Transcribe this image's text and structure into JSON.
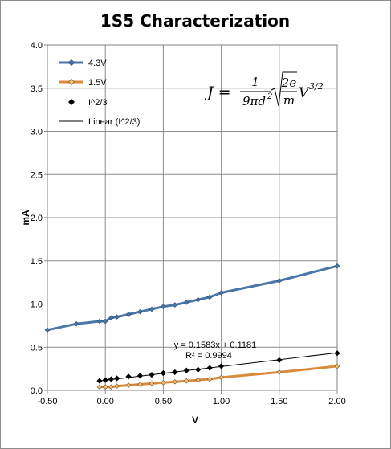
{
  "chart_data": {
    "type": "line",
    "title": "1S5 Characterization",
    "xlabel": "V",
    "ylabel": "mA",
    "xlim": [
      -0.5,
      2.0
    ],
    "ylim": [
      0.0,
      4.0
    ],
    "grid": true,
    "legend_position": "top-left",
    "x_ticks": [
      "-0.50",
      "0.00",
      "0.50",
      "1.00",
      "1.50",
      "2.00"
    ],
    "y_ticks": [
      "0.0",
      "0.5",
      "1.0",
      "1.5",
      "2.0",
      "2.5",
      "3.0",
      "3.5",
      "4.0"
    ],
    "series": [
      {
        "name": "4.3V",
        "style": "line-diamond",
        "color": "#4a76a8",
        "x": [
          -0.5,
          -0.25,
          -0.05,
          0.0,
          0.05,
          0.1,
          0.2,
          0.3,
          0.4,
          0.5,
          0.6,
          0.7,
          0.8,
          0.9,
          1.0,
          1.5,
          2.0
        ],
        "y": [
          0.7,
          0.77,
          0.8,
          0.8,
          0.84,
          0.85,
          0.88,
          0.91,
          0.94,
          0.97,
          0.99,
          1.02,
          1.05,
          1.08,
          1.13,
          1.27,
          1.44
        ]
      },
      {
        "name": "1.5V",
        "style": "line-diamond",
        "color": "#d98a3d",
        "x": [
          -0.05,
          0.0,
          0.05,
          0.1,
          0.2,
          0.3,
          0.4,
          0.5,
          0.6,
          0.7,
          0.8,
          0.9,
          1.0,
          1.5,
          2.0
        ],
        "y": [
          0.04,
          0.04,
          0.04,
          0.05,
          0.06,
          0.07,
          0.08,
          0.09,
          0.1,
          0.11,
          0.12,
          0.13,
          0.15,
          0.21,
          0.28
        ]
      },
      {
        "name": "I^2/3",
        "style": "markers",
        "color": "#000000",
        "x": [
          -0.05,
          0.0,
          0.05,
          0.1,
          0.2,
          0.3,
          0.4,
          0.5,
          0.6,
          0.7,
          0.8,
          0.9,
          1.0,
          1.5,
          2.0
        ],
        "y": [
          0.11,
          0.12,
          0.13,
          0.14,
          0.16,
          0.17,
          0.18,
          0.2,
          0.21,
          0.23,
          0.24,
          0.26,
          0.28,
          0.35,
          0.43
        ]
      },
      {
        "name": "Linear (I^2/3)",
        "style": "thin-line",
        "color": "#000000",
        "x": [
          -0.05,
          2.0
        ],
        "y": [
          0.11,
          0.435
        ]
      }
    ],
    "annotations": {
      "equation": "y = 0.1583x + 0.1181",
      "r_squared": "R² = 0.9994",
      "formula_lhs": "J =",
      "formula_num": "1",
      "formula_den_a": "9πd",
      "formula_den_exp": "2",
      "formula_rad_num": "2e",
      "formula_rad_den": "m",
      "formula_tail": "V",
      "formula_tail_exp": "3/2"
    }
  }
}
